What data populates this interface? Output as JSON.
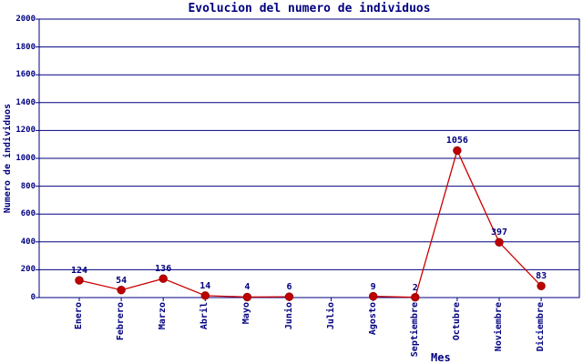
{
  "chart_data": {
    "type": "line",
    "title": "Evolucion del numero de individuos",
    "xlabel": "Mes",
    "ylabel": "Numero de individuos",
    "categories": [
      "Enero",
      "Febrero",
      "Marzo",
      "Abril",
      "Mayo",
      "Junio",
      "Julio",
      "Agosto",
      "Septiembre",
      "Octubre",
      "Noviembre",
      "Diciembre"
    ],
    "values": [
      124,
      54,
      136,
      14,
      4,
      6,
      null,
      9,
      2,
      1056,
      397,
      83
    ],
    "value_labels": [
      "124",
      "54",
      "136",
      "14",
      "4",
      "6",
      "",
      "9",
      "2",
      "1056",
      "397",
      "83"
    ],
    "ylim": [
      0,
      2000
    ],
    "yticks": [
      0,
      200,
      400,
      600,
      800,
      1000,
      1200,
      1400,
      1600,
      1800,
      2000
    ],
    "grid": "horizontal",
    "legend": "none",
    "x_labels_rotated": true,
    "colors": {
      "axis": "#000080",
      "grid": "#000080",
      "text": "#000080",
      "line": "#CC0000",
      "marker_fill": "#C00000",
      "marker_stroke": "#990000",
      "background": "#FFFFFF"
    }
  }
}
